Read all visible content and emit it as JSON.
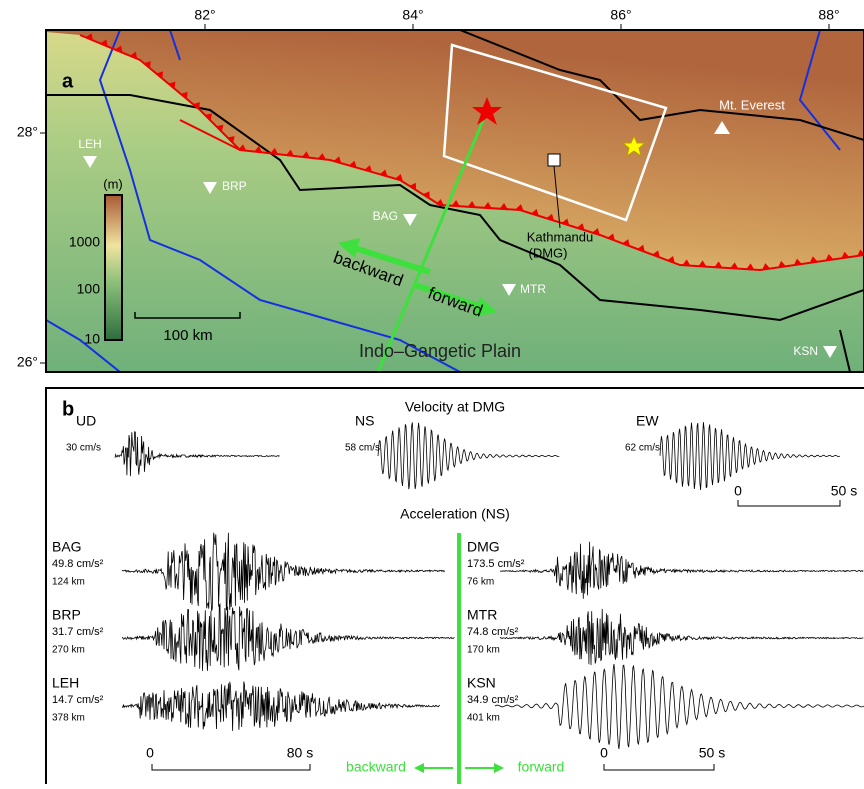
{
  "map": {
    "label": "a",
    "lon_ticks": [
      "82°",
      "84°",
      "86°",
      "88°"
    ],
    "lat_ticks": [
      "28°",
      "26°"
    ],
    "stations": [
      "LEH",
      "BRP",
      "BAG",
      "MTR",
      "KSN"
    ],
    "peak": "Mt. Everest",
    "city": [
      "Kathmandu",
      "(DMG)"
    ],
    "colorbar": {
      "unit": "(m)",
      "ticks": [
        "1000",
        "100",
        "10"
      ]
    },
    "scale": "100 km",
    "plain": "Indo–Gangetic Plain",
    "directions": [
      "backward",
      "forward"
    ]
  },
  "panel_b": {
    "label": "b",
    "velocity": {
      "title": "Velocity at DMG",
      "components": [
        {
          "name": "UD",
          "amplitude": "30 cm/s"
        },
        {
          "name": "NS",
          "amplitude": "58 cm/s"
        },
        {
          "name": "EW",
          "amplitude": "62 cm/s"
        }
      ],
      "time_scale": [
        "0",
        "50 s"
      ]
    },
    "acceleration": {
      "title": "Acceleration (NS)",
      "left": [
        {
          "station": "BAG",
          "amplitude": "49.8 cm/s²",
          "distance": "124 km"
        },
        {
          "station": "BRP",
          "amplitude": "31.7 cm/s²",
          "distance": "270 km"
        },
        {
          "station": "LEH",
          "amplitude": "14.7 cm/s²",
          "distance": "378 km"
        }
      ],
      "right": [
        {
          "station": "DMG",
          "amplitude": "173.5 cm/s²",
          "distance": "76 km"
        },
        {
          "station": "MTR",
          "amplitude": "74.8 cm/s²",
          "distance": "170 km"
        },
        {
          "station": "KSN",
          "amplitude": "34.9 cm/s²",
          "distance": "401 km"
        }
      ],
      "left_scale": [
        "0",
        "80 s"
      ],
      "right_scale": [
        "0",
        "50 s"
      ],
      "directions": [
        "backward",
        "forward"
      ]
    }
  }
}
